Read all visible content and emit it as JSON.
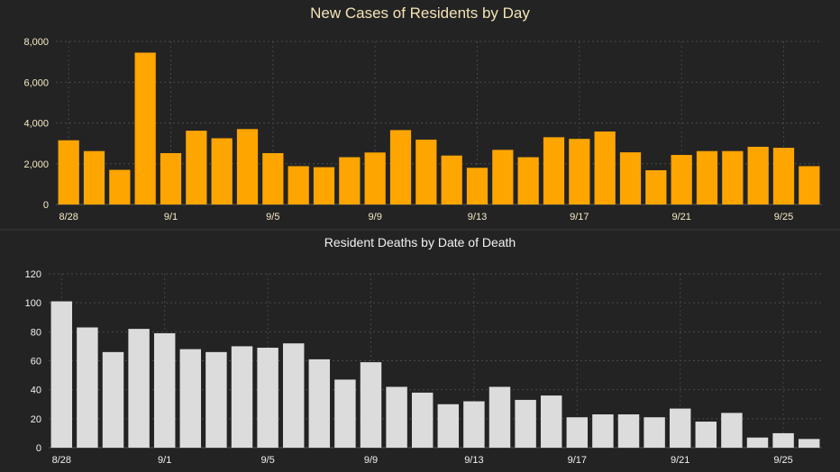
{
  "chart_data": [
    {
      "type": "bar",
      "title": "New Cases of Residents by Day",
      "xlabel": "",
      "ylabel": "",
      "color": "#FFA500",
      "ylim": [
        0,
        8000
      ],
      "yticks": [
        0,
        2000,
        4000,
        6000,
        8000
      ],
      "ytick_labels": [
        "0",
        "2,000",
        "4,000",
        "6,000",
        "8,000"
      ],
      "categories": [
        "8/28",
        "8/29",
        "8/30",
        "8/31",
        "9/1",
        "9/2",
        "9/3",
        "9/4",
        "9/5",
        "9/6",
        "9/7",
        "9/8",
        "9/9",
        "9/10",
        "9/11",
        "9/12",
        "9/13",
        "9/14",
        "9/15",
        "9/16",
        "9/17",
        "9/18",
        "9/19",
        "9/20",
        "9/21",
        "9/22",
        "9/23",
        "9/24",
        "9/25",
        "9/26"
      ],
      "values": [
        3150,
        2620,
        1700,
        7450,
        2520,
        3620,
        3250,
        3700,
        2520,
        1880,
        1830,
        2320,
        2550,
        3650,
        3180,
        2400,
        1800,
        2680,
        2320,
        3300,
        3220,
        3580,
        2560,
        1680,
        2430,
        2620,
        2620,
        2830,
        2780,
        1880
      ],
      "xtick_labels": [
        "8/28",
        "9/1",
        "9/5",
        "9/9",
        "9/13",
        "9/17",
        "9/21",
        "9/25"
      ],
      "grid": true
    },
    {
      "type": "bar",
      "title": "Resident Deaths by Date of Death",
      "xlabel": "",
      "ylabel": "",
      "color": "#DCDCDC",
      "ylim": [
        0,
        120
      ],
      "yticks": [
        0,
        20,
        40,
        60,
        80,
        100,
        120
      ],
      "ytick_labels": [
        "0",
        "20",
        "40",
        "60",
        "80",
        "100",
        "120"
      ],
      "categories": [
        "8/28",
        "8/29",
        "8/30",
        "8/31",
        "9/1",
        "9/2",
        "9/3",
        "9/4",
        "9/5",
        "9/6",
        "9/7",
        "9/8",
        "9/9",
        "9/10",
        "9/11",
        "9/12",
        "9/13",
        "9/14",
        "9/15",
        "9/16",
        "9/17",
        "9/18",
        "9/19",
        "9/20",
        "9/21",
        "9/22",
        "9/23",
        "9/24",
        "9/25",
        "9/26"
      ],
      "values": [
        101,
        83,
        66,
        82,
        79,
        68,
        66,
        70,
        69,
        72,
        61,
        47,
        59,
        42,
        38,
        30,
        32,
        42,
        33,
        36,
        21,
        23,
        23,
        21,
        27,
        18,
        24,
        7,
        10,
        6
      ],
      "xtick_labels": [
        "8/28",
        "9/1",
        "9/5",
        "9/9",
        "9/13",
        "9/17",
        "9/21",
        "9/25"
      ],
      "grid": true
    }
  ]
}
